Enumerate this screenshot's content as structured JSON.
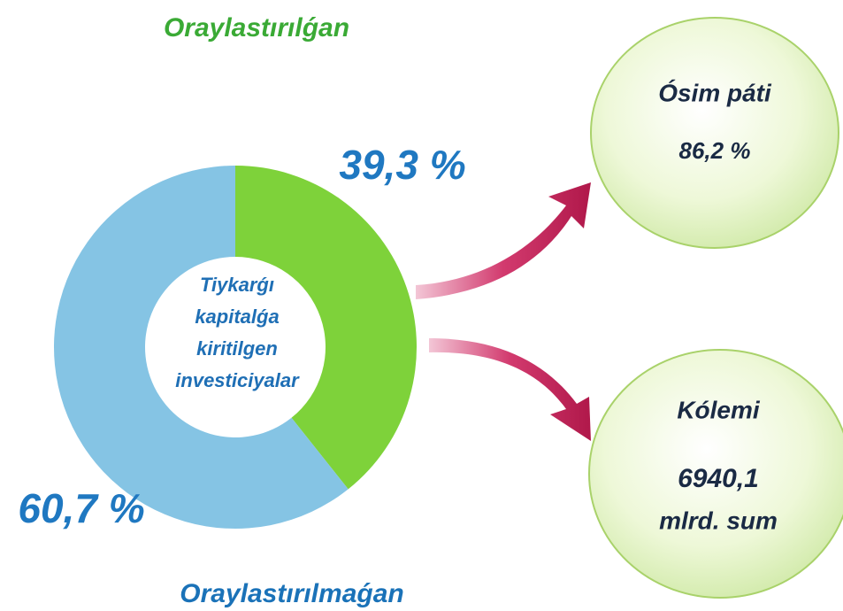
{
  "chart_data": {
    "type": "donut",
    "categories": [
      "Oraylastırılǵan",
      "Oraylastırılmaǵan"
    ],
    "values": [
      39.3,
      60.7
    ],
    "value_labels": [
      "39,3 %",
      "60,7 %"
    ],
    "colors": [
      "#7ed23a",
      "#85c4e4"
    ],
    "center_label": [
      "Tiykarǵı",
      "kapitalǵa",
      "kiritilgen",
      "investiciyalar"
    ]
  },
  "callouts": [
    {
      "title": "Ósim páti",
      "value": "86,2 %"
    },
    {
      "title": "Kólemi",
      "value": "6940,1",
      "unit": "mlrd. sum"
    }
  ]
}
